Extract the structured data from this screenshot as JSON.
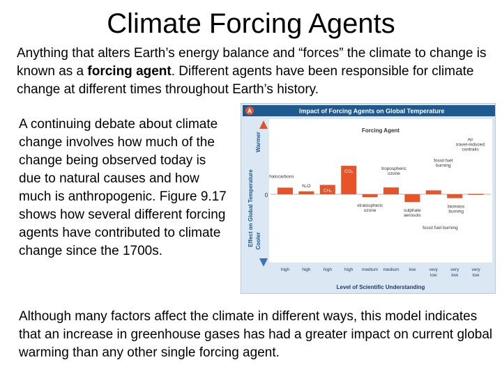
{
  "slide": {
    "title": "Climate Forcing Agents",
    "intro_a": "Anything that alters Earth’s energy balance and “forces” the climate to change is known as a ",
    "intro_bold": "forcing agent",
    "intro_b": ".  Different agents have been responsible for climate change at different times throughout Earth’s history.",
    "side_text": "A continuing debate about climate change involves how much of the change being observed today is due to natural causes and how much is anthropogenic.  Figure 9.17 shows how several different forcing agents have contributed to climate change since the 1700s.",
    "conclusion": "Although many factors affect the climate in different ways, this model indicates that an increase in greenhouse gases has had a greater impact on current global warming than any other single forcing agent."
  },
  "figure": {
    "badge": "A",
    "header": "Impact of Forcing Agents on Global Temperature",
    "panel_title": "Forcing Agent",
    "y_label": "Effect on Global Temperature",
    "warmer": "Warmer",
    "cooler": "Cooler",
    "zero": "0",
    "x_title": "Level of Scientific Understanding",
    "colors": {
      "bar": "#e8542a",
      "header": "#1e5a8f",
      "panel": "#ffffff",
      "arrow": "#e2502c",
      "arrow_cool": "#3d72b8"
    }
  },
  "chart_data": {
    "type": "bar",
    "title": "Impact of Forcing Agents on Global Temperature",
    "xlabel": "Level of Scientific Understanding",
    "ylabel": "Effect on Global Temperature",
    "categories": [
      "halocarbons",
      "N₂O",
      "CH₄",
      "CO₂",
      "stratospheric ozone",
      "tropospheric ozone",
      "sulphate aerosols",
      "fossil fuel burning",
      "biomass burning",
      "Air travel-induced contrails"
    ],
    "understanding": [
      "high",
      "high",
      "high",
      "high",
      "medium",
      "medium",
      "low",
      "very low",
      "very low",
      "very low"
    ],
    "values": [
      0.34,
      0.15,
      0.48,
      1.46,
      -0.15,
      0.35,
      -0.4,
      0.2,
      -0.2,
      0.02
    ],
    "extra_bar": {
      "label": "fossil fuel burning",
      "value": -0.1
    }
  }
}
